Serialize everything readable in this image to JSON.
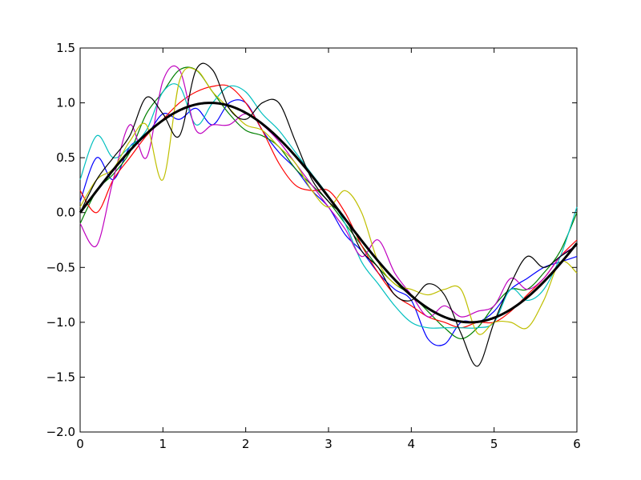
{
  "chart_data": {
    "type": "line",
    "title": "",
    "xlabel": "",
    "ylabel": "",
    "xlim": [
      0,
      6
    ],
    "ylim": [
      -2.0,
      1.5
    ],
    "xticks": [
      0,
      1,
      2,
      3,
      4,
      5,
      6
    ],
    "xtick_labels": [
      "0",
      "1",
      "2",
      "3",
      "4",
      "5",
      "6"
    ],
    "yticks": [
      -2.0,
      -1.5,
      -1.0,
      -0.5,
      0.0,
      0.5,
      1.0,
      1.5
    ],
    "ytick_labels": [
      "−2.0",
      "−1.5",
      "−1.0",
      "−0.5",
      "0.0",
      "0.5",
      "1.0",
      "1.5"
    ],
    "grid": false,
    "legend": "none",
    "x": [
      0,
      0.2,
      0.4,
      0.6,
      0.8,
      1.0,
      1.2,
      1.4,
      1.6,
      1.8,
      2.0,
      2.2,
      2.4,
      2.6,
      2.8,
      3.0,
      3.2,
      3.4,
      3.6,
      3.8,
      4.0,
      4.2,
      4.4,
      4.6,
      4.8,
      5.0,
      5.2,
      5.4,
      5.6,
      5.8,
      6.0
    ],
    "series": [
      {
        "color": "#0000ff",
        "values": [
          0.1,
          0.5,
          0.3,
          0.6,
          0.7,
          0.9,
          0.85,
          0.95,
          0.8,
          1.0,
          1.0,
          0.75,
          0.55,
          0.4,
          0.2,
          0.05,
          -0.2,
          -0.35,
          -0.55,
          -0.7,
          -0.8,
          -1.15,
          -1.2,
          -1.0,
          -1.0,
          -0.9,
          -0.7,
          -0.6,
          -0.5,
          -0.45,
          -0.4
        ]
      },
      {
        "color": "#008000",
        "values": [
          -0.1,
          0.2,
          0.35,
          0.55,
          0.9,
          1.1,
          1.3,
          1.3,
          1.1,
          0.9,
          0.75,
          0.7,
          0.6,
          0.4,
          0.25,
          0.1,
          -0.1,
          -0.3,
          -0.5,
          -0.65,
          -0.75,
          -0.9,
          -1.05,
          -1.15,
          -1.05,
          -0.85,
          -0.7,
          -0.7,
          -0.55,
          -0.35,
          0.0
        ]
      },
      {
        "color": "#ff0000",
        "values": [
          0.2,
          0.0,
          0.3,
          0.5,
          0.7,
          0.85,
          1.0,
          1.1,
          1.15,
          1.15,
          1.0,
          0.75,
          0.45,
          0.25,
          0.2,
          0.2,
          0.0,
          -0.3,
          -0.55,
          -0.75,
          -0.85,
          -0.95,
          -1.0,
          -1.05,
          -1.0,
          -1.0,
          -0.9,
          -0.75,
          -0.6,
          -0.4,
          -0.25
        ]
      },
      {
        "color": "#00bfbf",
        "values": [
          0.3,
          0.7,
          0.5,
          0.6,
          0.75,
          1.1,
          1.15,
          0.8,
          1.0,
          1.15,
          1.1,
          0.9,
          0.75,
          0.55,
          0.35,
          0.15,
          -0.1,
          -0.45,
          -0.65,
          -0.85,
          -1.0,
          -1.05,
          -1.05,
          -1.05,
          -1.05,
          -1.0,
          -0.7,
          -0.8,
          -0.7,
          -0.4,
          0.05
        ]
      },
      {
        "color": "#bf00bf",
        "values": [
          -0.1,
          -0.3,
          0.3,
          0.8,
          0.5,
          1.2,
          1.3,
          0.75,
          0.8,
          0.8,
          0.9,
          0.8,
          0.65,
          0.45,
          0.25,
          0.05,
          -0.15,
          -0.4,
          -0.25,
          -0.55,
          -0.75,
          -0.95,
          -0.85,
          -0.95,
          -0.9,
          -0.85,
          -0.6,
          -0.7,
          -0.6,
          -0.4,
          -0.3
        ]
      },
      {
        "color": "#bfbf00",
        "values": [
          0.05,
          0.3,
          0.4,
          0.65,
          0.8,
          0.3,
          1.2,
          1.3,
          1.1,
          0.95,
          0.8,
          0.75,
          0.6,
          0.45,
          0.2,
          0.05,
          0.2,
          0.0,
          -0.45,
          -0.65,
          -0.7,
          -0.75,
          -0.7,
          -0.7,
          -1.1,
          -1.0,
          -1.0,
          -1.05,
          -0.8,
          -0.45,
          -0.55
        ]
      },
      {
        "color": "#000000",
        "values": [
          0.0,
          0.3,
          0.5,
          0.7,
          1.05,
          0.9,
          0.7,
          1.3,
          1.3,
          0.95,
          0.85,
          1.0,
          1.0,
          0.65,
          0.3,
          0.1,
          -0.05,
          -0.35,
          -0.5,
          -0.75,
          -0.8,
          -0.65,
          -0.75,
          -1.1,
          -1.4,
          -1.0,
          -0.65,
          -0.4,
          -0.5,
          -0.4,
          -0.3
        ]
      }
    ],
    "mean_curve": {
      "color": "#000000",
      "function": "sin(x)"
    }
  }
}
